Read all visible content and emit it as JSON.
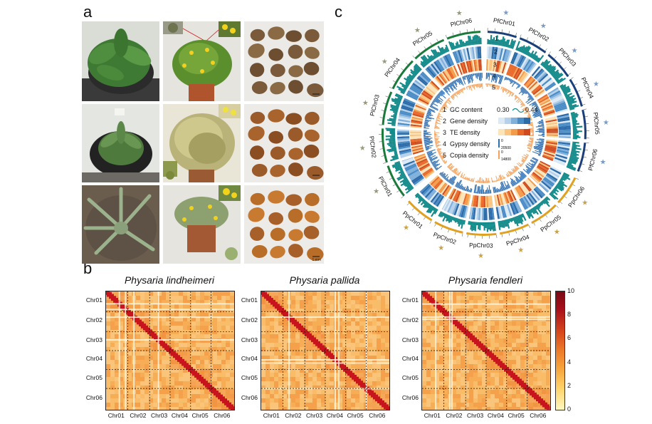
{
  "panels": {
    "a": "a",
    "b": "b",
    "c": "c"
  },
  "photos": {
    "scale_bar": "1 mm"
  },
  "circos": {
    "pl_chromosomes": [
      "PlChr01",
      "PlChr02",
      "PlChr03",
      "PlChr04",
      "PlChr05",
      "PlChr06"
    ],
    "pf_chromosomes": [
      "PfChr01",
      "PfChr02",
      "PfChr03",
      "PfChr04",
      "PfChr05",
      "PfChr06"
    ],
    "pp_chromosomes": [
      "PpChr06",
      "PpChr05",
      "PpChr04",
      "PpChr03",
      "PpChr02",
      "PpChr01"
    ],
    "track_numbers": [
      "1",
      "2",
      "3",
      "4",
      "5"
    ],
    "legend": [
      {
        "num": "1",
        "label": "GC content",
        "range_low": "0.30",
        "range_high": "0.44"
      },
      {
        "num": "2",
        "label": "Gene density"
      },
      {
        "num": "3",
        "label": "TE density"
      },
      {
        "num": "4",
        "label": "Gypsy density",
        "scale_low": "0",
        "scale_high": "20500"
      },
      {
        "num": "5",
        "label": "Copia density",
        "scale_low": "0",
        "scale_high": "14800"
      }
    ],
    "colors": {
      "gc": "#138a8a",
      "gene": "#2f6fb0",
      "te": "#e8622a",
      "pl_band": "#1a7a3a",
      "pf_band": "#1b3f7a",
      "pp_band": "#e0a020",
      "star_gray": "#9a9a7a",
      "star_blue": "#7a9ac8",
      "star_gold": "#c8a050"
    }
  },
  "heatmaps": [
    {
      "title": "Physaria lindheimeri",
      "chromosomes": [
        "Chr01",
        "Chr02",
        "Chr03",
        "Chr04",
        "Chr05",
        "Chr06"
      ]
    },
    {
      "title": "Physaria pallida",
      "chromosomes": [
        "Chr01",
        "Chr02",
        "Chr03",
        "Chr04",
        "Chr05",
        "Chr06"
      ]
    },
    {
      "title": "Physaria fendleri",
      "chromosomes": [
        "Chr01",
        "Chr02",
        "Chr03",
        "Chr04",
        "Chr05",
        "Chr06"
      ]
    }
  ],
  "colorbar": {
    "ticks": [
      "10",
      "8",
      "6",
      "4",
      "2",
      "0"
    ],
    "colors": [
      "#fff7c0",
      "#ffd36a",
      "#f6a33b",
      "#ec7b2a",
      "#d84a1c",
      "#a8101a",
      "#7a0a14"
    ]
  }
}
